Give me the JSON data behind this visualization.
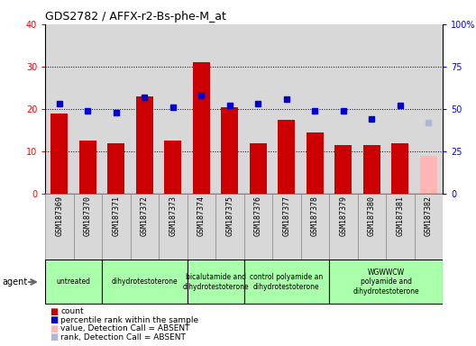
{
  "title": "GDS2782 / AFFX-r2-Bs-phe-M_at",
  "samples": [
    "GSM187369",
    "GSM187370",
    "GSM187371",
    "GSM187372",
    "GSM187373",
    "GSM187374",
    "GSM187375",
    "GSM187376",
    "GSM187377",
    "GSM187378",
    "GSM187379",
    "GSM187380",
    "GSM187381",
    "GSM187382"
  ],
  "counts": [
    19,
    12.5,
    12,
    23,
    12.5,
    31,
    20.5,
    12,
    17.5,
    14.5,
    11.5,
    11.5,
    12,
    null
  ],
  "ranks": [
    53,
    49,
    48,
    57,
    51,
    58,
    52,
    53,
    56,
    49,
    49,
    44,
    52,
    null
  ],
  "absent_count": [
    null,
    null,
    null,
    null,
    null,
    null,
    null,
    null,
    null,
    null,
    null,
    null,
    null,
    9
  ],
  "absent_rank": [
    null,
    null,
    null,
    null,
    null,
    null,
    null,
    null,
    null,
    null,
    null,
    null,
    null,
    42
  ],
  "bar_color": "#cc0000",
  "absent_bar_color": "#ffb6b6",
  "dot_color": "#0000cc",
  "absent_dot_color": "#b0b8d8",
  "ylim_left": [
    0,
    40
  ],
  "ylim_right": [
    0,
    100
  ],
  "yticks_left": [
    0,
    10,
    20,
    30,
    40
  ],
  "yticks_right": [
    0,
    25,
    50,
    75,
    100
  ],
  "yticklabels_right": [
    "0",
    "25",
    "50",
    "75",
    "100%"
  ],
  "groups": [
    {
      "label": "untreated",
      "indices": [
        0,
        1
      ],
      "color": "#aaffaa"
    },
    {
      "label": "dihydrotestoterone",
      "indices": [
        2,
        3,
        4
      ],
      "color": "#aaffaa"
    },
    {
      "label": "bicalutamide and\ndihydrotestoterone",
      "indices": [
        5,
        6
      ],
      "color": "#aaffaa"
    },
    {
      "label": "control polyamide an\ndihydrotestoterone",
      "indices": [
        7,
        8,
        9
      ],
      "color": "#aaffaa"
    },
    {
      "label": "WGWWCW\npolyamide and\ndihydrotestoterone",
      "indices": [
        10,
        11,
        12,
        13
      ],
      "color": "#aaffaa"
    }
  ],
  "agent_label": "agent",
  "legend": [
    {
      "label": "count",
      "color": "#cc0000"
    },
    {
      "label": "percentile rank within the sample",
      "color": "#0000cc"
    },
    {
      "label": "value, Detection Call = ABSENT",
      "color": "#ffb6b6"
    },
    {
      "label": "rank, Detection Call = ABSENT",
      "color": "#b0b8d8"
    }
  ],
  "plot_bg": "#ffffff",
  "col_bg": "#d8d8d8",
  "grid_color": "#000000",
  "border_color": "#888888"
}
